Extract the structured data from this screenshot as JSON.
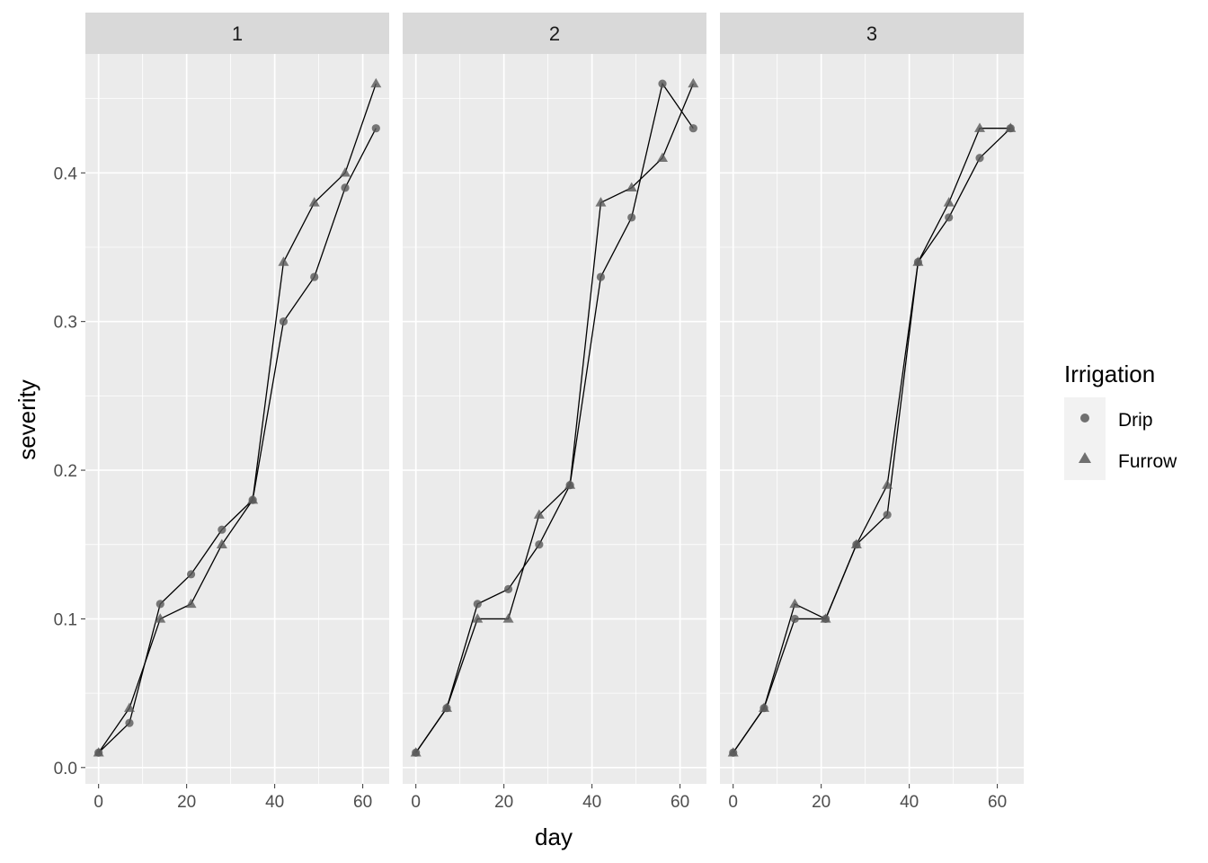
{
  "chart_data": {
    "type": "line",
    "facet_variable": "block",
    "panels": [
      "1",
      "2",
      "3"
    ],
    "xlabel": "day",
    "ylabel": "severity",
    "xlim": [
      -3,
      66
    ],
    "ylim": [
      -0.011,
      0.48
    ],
    "xticks": [
      0,
      20,
      40,
      60
    ],
    "xtick_labels": [
      "0",
      "20",
      "40",
      "60"
    ],
    "yticks": [
      0.0,
      0.1,
      0.2,
      0.3,
      0.4
    ],
    "ytick_labels": [
      "0.0",
      "0.1",
      "0.2",
      "0.3",
      "0.4"
    ],
    "grid": true,
    "legend": {
      "title": "Irrigation",
      "position": "right",
      "entries": [
        {
          "label": "Drip",
          "shape": "circle"
        },
        {
          "label": "Furrow",
          "shape": "triangle"
        }
      ]
    },
    "x": [
      0,
      7,
      14,
      21,
      28,
      35,
      42,
      49,
      56,
      63
    ],
    "series": [
      {
        "name": "Drip",
        "panel": "1",
        "shape": "circle",
        "values": [
          0.01,
          0.03,
          0.11,
          0.13,
          0.16,
          0.18,
          0.3,
          0.33,
          0.39,
          0.43
        ]
      },
      {
        "name": "Furrow",
        "panel": "1",
        "shape": "triangle",
        "values": [
          0.01,
          0.04,
          0.1,
          0.11,
          0.15,
          0.18,
          0.34,
          0.38,
          0.4,
          0.46
        ]
      },
      {
        "name": "Drip",
        "panel": "2",
        "shape": "circle",
        "values": [
          0.01,
          0.04,
          0.11,
          0.12,
          0.15,
          0.19,
          0.33,
          0.37,
          0.46,
          0.43
        ]
      },
      {
        "name": "Furrow",
        "panel": "2",
        "shape": "triangle",
        "values": [
          0.01,
          0.04,
          0.1,
          0.1,
          0.17,
          0.19,
          0.38,
          0.39,
          0.41,
          0.46
        ]
      },
      {
        "name": "Drip",
        "panel": "3",
        "shape": "circle",
        "values": [
          0.01,
          0.04,
          0.1,
          0.1,
          0.15,
          0.17,
          0.34,
          0.37,
          0.41,
          0.43
        ]
      },
      {
        "name": "Furrow",
        "panel": "3",
        "shape": "triangle",
        "values": [
          0.01,
          0.04,
          0.11,
          0.1,
          0.15,
          0.19,
          0.34,
          0.38,
          0.43,
          0.43
        ]
      }
    ],
    "colors": {
      "panel_background": "#EBEBEB",
      "grid_major": "#FFFFFF",
      "strip_background": "#D9D9D9",
      "point": "#595959",
      "line": "#000000",
      "legend_key_background": "#F2F2F2"
    }
  }
}
